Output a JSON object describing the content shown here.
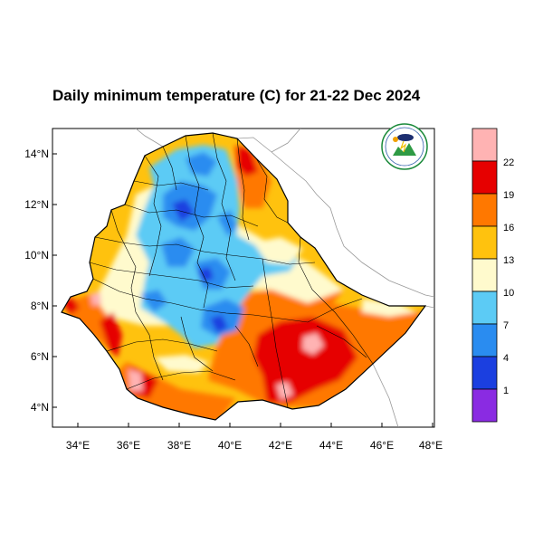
{
  "title": "Daily minimum temperature (C) for 21-22 Dec 2024",
  "axes": {
    "lat_ticks": [
      "14°N",
      "12°N",
      "10°N",
      "8°N",
      "6°N",
      "4°N"
    ],
    "lon_ticks": [
      "34°E",
      "36°E",
      "38°E",
      "40°E",
      "42°E",
      "44°E",
      "46°E",
      "48°E"
    ]
  },
  "colorbar": {
    "labels": [
      "22",
      "19",
      "16",
      "13",
      "10",
      "7",
      "4",
      "1"
    ],
    "colors": [
      "#ffb3b3",
      "#e60000",
      "#ff7800",
      "#ffc20e",
      "#fffacd",
      "#5ccbf5",
      "#2a8cf0",
      "#1b3fe0",
      "#8a2be2"
    ]
  },
  "logo": {
    "name": "meteorology-agency-logo"
  }
}
